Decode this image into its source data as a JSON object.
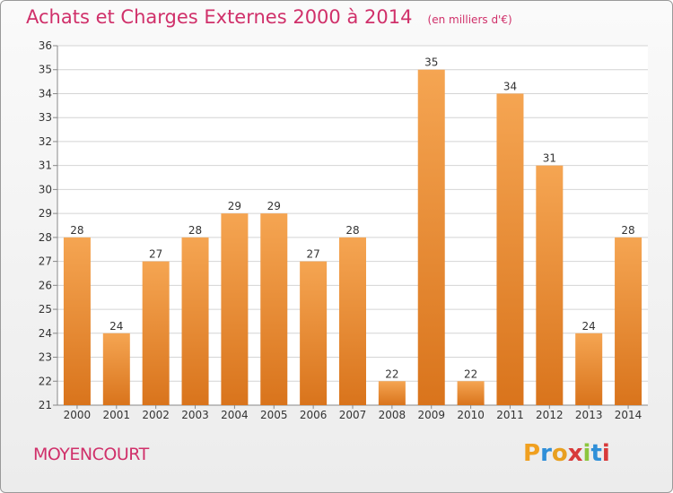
{
  "chart_data": {
    "type": "bar",
    "title": "Achats et Charges Externes 2000 à 2014",
    "unit_label": "(en milliers d'€)",
    "categories": [
      "2000",
      "2001",
      "2002",
      "2003",
      "2004",
      "2005",
      "2006",
      "2007",
      "2008",
      "2009",
      "2010",
      "2011",
      "2012",
      "2013",
      "2014"
    ],
    "values": [
      28,
      24,
      27,
      28,
      29,
      29,
      27,
      28,
      22,
      35,
      22,
      34,
      31,
      24,
      28
    ],
    "ylim": [
      21,
      36
    ],
    "yticks": [
      21,
      22,
      23,
      24,
      25,
      26,
      27,
      28,
      29,
      30,
      31,
      32,
      33,
      34,
      35,
      36
    ],
    "grid": true,
    "bar_color_top": "#f5a552",
    "bar_color_bottom": "#d9741c"
  },
  "footer": {
    "commune": "MOYENCOURT",
    "logo": "Proxiti"
  }
}
